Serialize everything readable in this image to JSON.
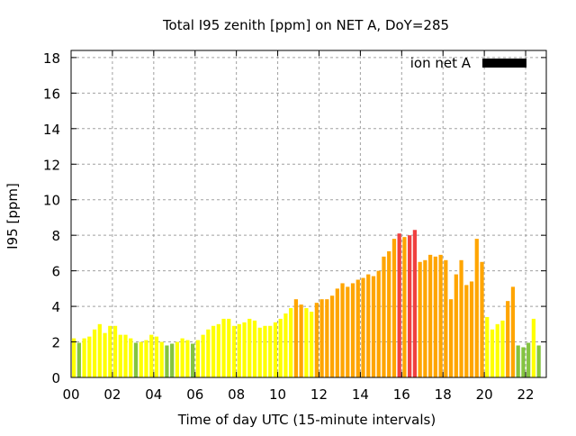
{
  "chart_data": {
    "type": "bar",
    "title": "Total I95 zenith [ppm] on NET A, DoY=285",
    "xlabel": "Time of day UTC (15-minute intervals)",
    "ylabel": "I95 [ppm]",
    "xlim": [
      0,
      23
    ],
    "ylim": [
      0,
      18.4
    ],
    "bin_hours": 0.25,
    "x_ticks": [
      {
        "v": 0,
        "label": "00"
      },
      {
        "v": 2,
        "label": "02"
      },
      {
        "v": 4,
        "label": "04"
      },
      {
        "v": 6,
        "label": "06"
      },
      {
        "v": 8,
        "label": "08"
      },
      {
        "v": 10,
        "label": "10"
      },
      {
        "v": 12,
        "label": "12"
      },
      {
        "v": 14,
        "label": "14"
      },
      {
        "v": 16,
        "label": "16"
      },
      {
        "v": 18,
        "label": "18"
      },
      {
        "v": 20,
        "label": "20"
      },
      {
        "v": 22,
        "label": "22"
      }
    ],
    "y_ticks": [
      0,
      2,
      4,
      6,
      8,
      10,
      12,
      14,
      16,
      18
    ],
    "grid": true,
    "legend": {
      "label": "ion net A",
      "placement": "top-right",
      "color": "#000000"
    },
    "color_thresholds": [
      {
        "below": 2,
        "color": "#84c440"
      },
      {
        "below": 4,
        "color": "#ffff00"
      },
      {
        "below": 8,
        "color": "#ffa500"
      },
      {
        "below": 999,
        "color": "#f04040"
      }
    ],
    "values": [
      2.2,
      1.95,
      2.2,
      2.3,
      2.7,
      3.0,
      2.5,
      2.9,
      2.9,
      2.4,
      2.4,
      2.2,
      1.95,
      2.0,
      2.1,
      2.4,
      2.3,
      2.0,
      1.8,
      1.9,
      2.0,
      2.2,
      2.1,
      1.9,
      2.1,
      2.4,
      2.7,
      2.9,
      3.0,
      3.3,
      3.3,
      2.9,
      3.0,
      3.1,
      3.3,
      3.2,
      2.8,
      2.9,
      2.9,
      3.1,
      3.3,
      3.6,
      3.9,
      4.4,
      4.1,
      3.9,
      3.7,
      4.2,
      4.4,
      4.4,
      4.6,
      5.0,
      5.3,
      5.1,
      5.3,
      5.5,
      5.6,
      5.8,
      5.7,
      6.0,
      6.8,
      7.1,
      7.8,
      8.1,
      7.9,
      8.0,
      8.3,
      6.5,
      6.6,
      6.9,
      6.8,
      6.9,
      6.6,
      4.4,
      5.8,
      6.6,
      5.2,
      5.4,
      7.8,
      6.5,
      3.4,
      2.7,
      3.0,
      3.2,
      4.3,
      5.1,
      1.8,
      1.7,
      1.95,
      3.3,
      1.8
    ]
  }
}
